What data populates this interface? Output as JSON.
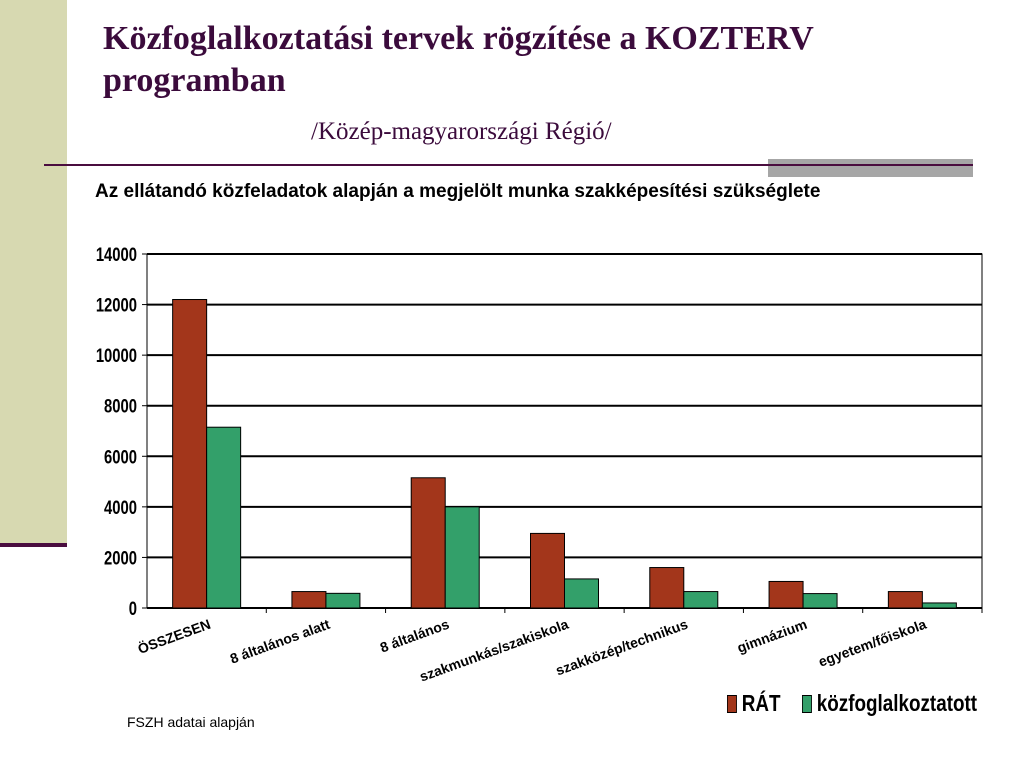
{
  "slide": {
    "title": "Közfoglalkoztatási tervek rögzítése a KOZTERV programban",
    "subtitle": "/Közép-magyarországi Régió/",
    "caption": "Az ellátandó közfeladatok alapján a megjelölt munka szakképesítési szükséglete",
    "footnote": "FSZH adatai alapján"
  },
  "colors": {
    "series_1": "#a3361b",
    "series_2": "#33a06a",
    "title": "#3b0b3c",
    "side_band": "#d7d9b1"
  },
  "chart_data": {
    "type": "bar",
    "categories": [
      "ÖSSZESEN",
      "8 általános alatt",
      "8 általános",
      "szakmunkás/szakiskola",
      "szakközép/technikus",
      "gimnázium",
      "egyetem/főiskola"
    ],
    "series": [
      {
        "name": "RÁT",
        "values": [
          12200,
          650,
          5150,
          2950,
          1600,
          1050,
          650
        ]
      },
      {
        "name": "közfoglalkoztatott",
        "values": [
          7150,
          580,
          4000,
          1150,
          650,
          570,
          200
        ]
      }
    ],
    "ylim": [
      0,
      14000
    ],
    "yticks": [
      "0",
      "2000",
      "4000",
      "6000",
      "8000",
      "10000",
      "12000",
      "14000"
    ],
    "grid": true,
    "legend": "bottom-right"
  }
}
